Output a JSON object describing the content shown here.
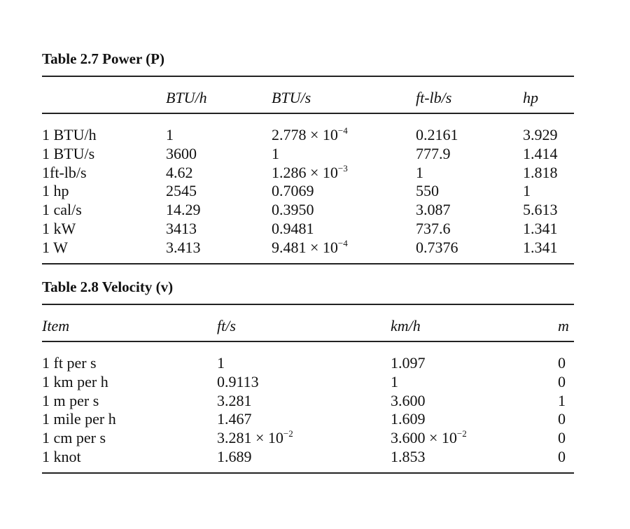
{
  "power": {
    "title": "Table 2.7 Power (P)",
    "headers": [
      "",
      "BTU/h",
      "BTU/s",
      "ft-lb/s",
      "hp"
    ],
    "rows": [
      [
        {
          "t": "1 BTU/h"
        },
        {
          "t": "1"
        },
        {
          "t": "2.778 × 10",
          "e": "−4"
        },
        {
          "t": "0.2161"
        },
        {
          "t": "3.929"
        }
      ],
      [
        {
          "t": "1 BTU/s"
        },
        {
          "t": "3600"
        },
        {
          "t": "1"
        },
        {
          "t": "777.9"
        },
        {
          "t": "1.414"
        }
      ],
      [
        {
          "t": "1ft-lb/s"
        },
        {
          "t": "4.62"
        },
        {
          "t": "1.286 × 10",
          "e": "−3"
        },
        {
          "t": "1"
        },
        {
          "t": "1.818"
        }
      ],
      [
        {
          "t": "1 hp"
        },
        {
          "t": "2545"
        },
        {
          "t": "0.7069"
        },
        {
          "t": "550"
        },
        {
          "t": "1"
        }
      ],
      [
        {
          "t": "1 cal/s"
        },
        {
          "t": "14.29"
        },
        {
          "t": "0.3950"
        },
        {
          "t": "3.087"
        },
        {
          "t": "5.613"
        }
      ],
      [
        {
          "t": "1 kW"
        },
        {
          "t": "3413"
        },
        {
          "t": "0.9481"
        },
        {
          "t": "737.6"
        },
        {
          "t": "1.341"
        }
      ],
      [
        {
          "t": "1 W"
        },
        {
          "t": "3.413"
        },
        {
          "t": "9.481 × 10",
          "e": "−4"
        },
        {
          "t": "0.7376"
        },
        {
          "t": "1.341"
        }
      ]
    ]
  },
  "velocity": {
    "title": "Table 2.8 Velocity (v)",
    "headers": [
      "Item",
      "ft/s",
      "km/h",
      "m"
    ],
    "rows": [
      [
        {
          "t": "1 ft per s"
        },
        {
          "t": "1"
        },
        {
          "t": "1.097"
        },
        {
          "t": "0"
        }
      ],
      [
        {
          "t": "1 km per h"
        },
        {
          "t": "0.9113"
        },
        {
          "t": "1"
        },
        {
          "t": "0"
        }
      ],
      [
        {
          "t": "1 m per s"
        },
        {
          "t": "3.281"
        },
        {
          "t": "3.600"
        },
        {
          "t": "1"
        }
      ],
      [
        {
          "t": "1 mile per h"
        },
        {
          "t": "1.467"
        },
        {
          "t": "1.609"
        },
        {
          "t": "0"
        }
      ],
      [
        {
          "t": "1 cm per s"
        },
        {
          "t": "3.281 × 10",
          "e": "−2"
        },
        {
          "t": "3.600 × 10",
          "e": "−2"
        },
        {
          "t": "0"
        }
      ],
      [
        {
          "t": "1 knot"
        },
        {
          "t": "1.689"
        },
        {
          "t": "1.853"
        },
        {
          "t": "0"
        }
      ]
    ]
  }
}
